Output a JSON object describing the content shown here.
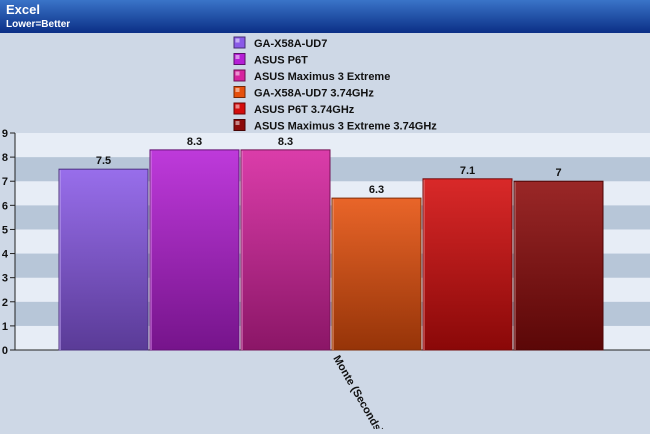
{
  "header": {
    "title": "Excel",
    "subtitle": "Lower=Better"
  },
  "colors": {
    "header_top": "#3a74c8",
    "header_bottom": "#0b2f86",
    "band_light": "#e7edf6",
    "band_dark": "#b7c6d8",
    "background": "#ced8e6"
  },
  "chart_data": {
    "type": "bar",
    "title": "",
    "categories": [
      "Monte (Seconds)"
    ],
    "xlabel": "",
    "ylabel": "",
    "ylim": [
      0,
      9
    ],
    "yticks": [
      "0",
      "1",
      "2",
      "3",
      "4",
      "5",
      "6",
      "7",
      "8",
      "9"
    ],
    "grid": "alternating horizontal bands",
    "legend_position": "top-center",
    "series": [
      {
        "name": "GA-X58A-UD7",
        "values": [
          7.5
        ],
        "label": "7.5",
        "color": "#8a5ae8"
      },
      {
        "name": "ASUS P6T",
        "values": [
          8.3
        ],
        "label": "8.3",
        "color": "#b51fd6"
      },
      {
        "name": "ASUS Maximus 3 Extreme",
        "values": [
          8.3
        ],
        "label": "8.3",
        "color": "#d6229e"
      },
      {
        "name": "GA-X58A-UD7 3.74GHz",
        "values": [
          6.3
        ],
        "label": "6.3",
        "color": "#e6500c"
      },
      {
        "name": "ASUS P6T 3.74GHz",
        "values": [
          7.1
        ],
        "label": "7.1",
        "color": "#d40c0c"
      },
      {
        "name": "ASUS Maximus 3 Extreme 3.74GHz",
        "values": [
          7
        ],
        "label": "7",
        "color": "#8c0a0a"
      }
    ]
  }
}
